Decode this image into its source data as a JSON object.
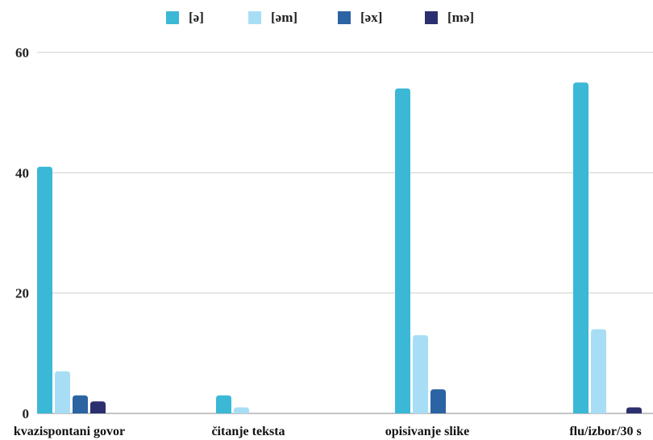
{
  "chart_data": {
    "type": "bar",
    "categories": [
      "kvazispontani govor",
      "čitanje teksta",
      "opisivanje slike",
      "flu/izbor/30 s"
    ],
    "series": [
      {
        "name": "[ə]",
        "color": "#3bb8d6",
        "values": [
          41,
          3,
          54,
          55
        ]
      },
      {
        "name": "[əm]",
        "color": "#a8def5",
        "values": [
          7,
          1,
          13,
          14
        ]
      },
      {
        "name": "[əx]",
        "color": "#2b63a3",
        "values": [
          3,
          0,
          4,
          0
        ]
      },
      {
        "name": "[mə]",
        "color": "#2c2f6e",
        "values": [
          2,
          0,
          0,
          1
        ]
      }
    ],
    "title": "",
    "xlabel": "",
    "ylabel": "",
    "ylim": [
      0,
      60
    ],
    "yticks": [
      0,
      20,
      40,
      60
    ],
    "grid": true,
    "legend": "top"
  }
}
